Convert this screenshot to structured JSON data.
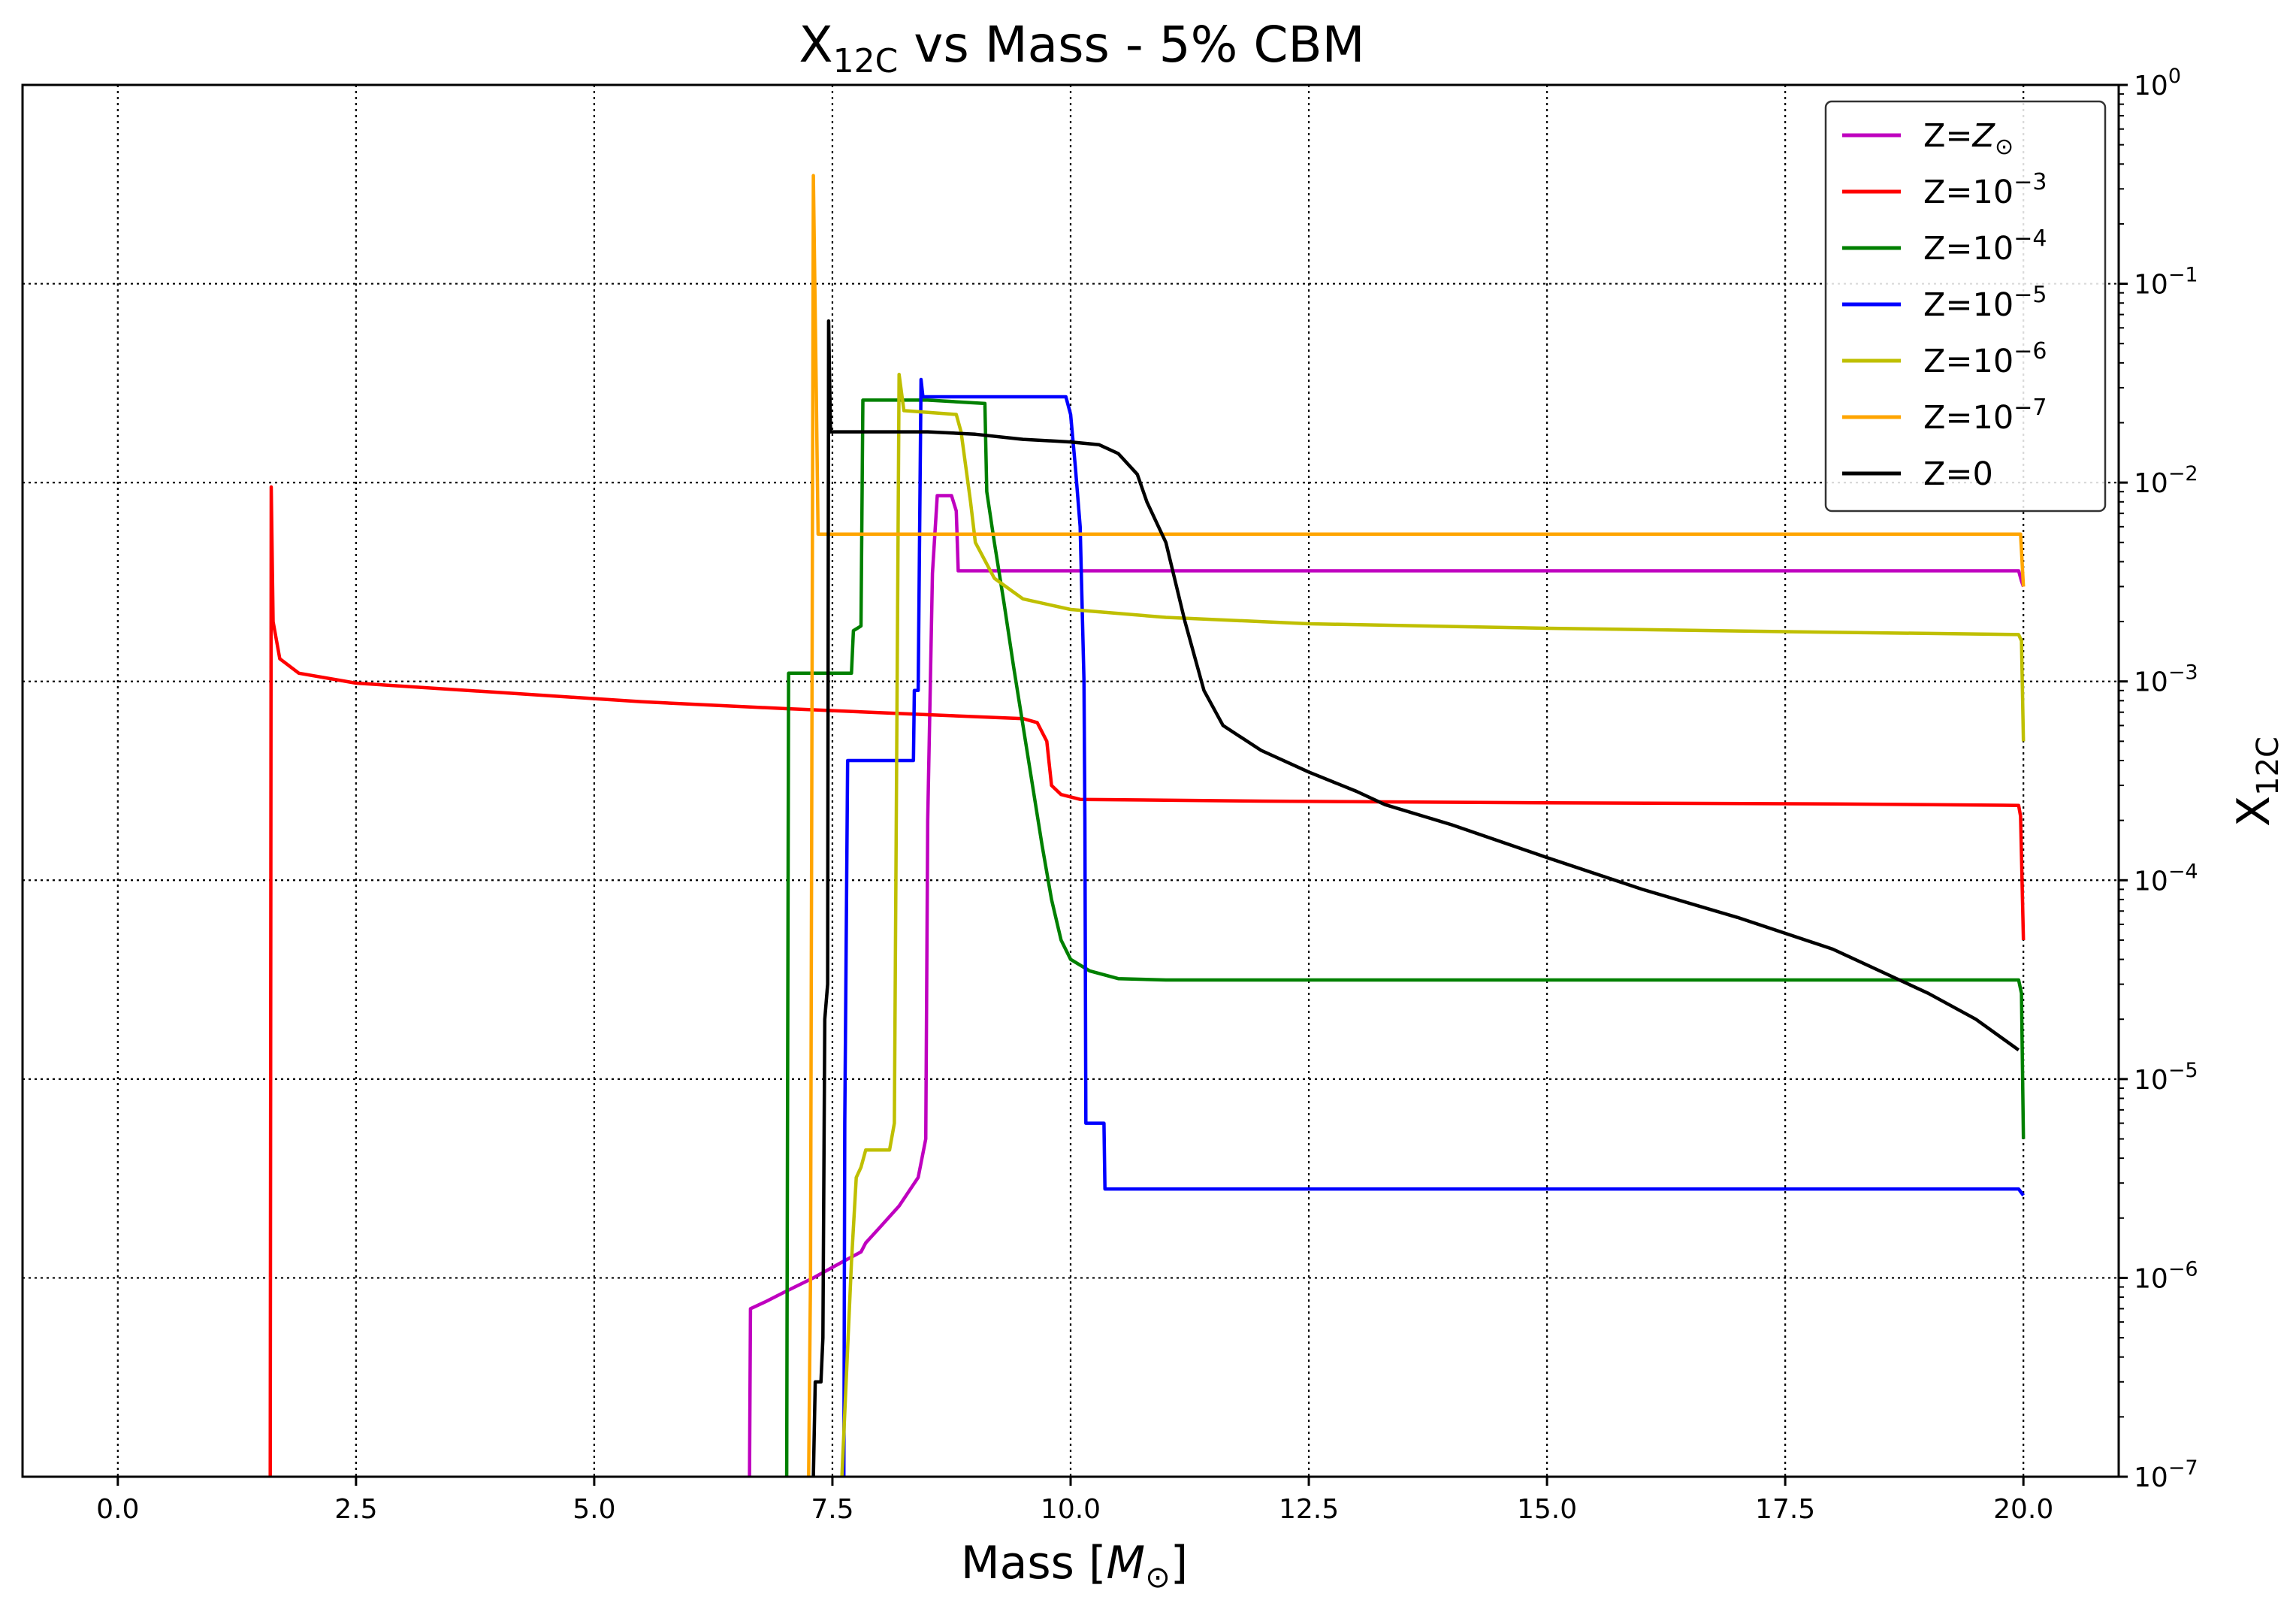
{
  "chart_data": {
    "type": "line",
    "title": {
      "main": "X",
      "sub": "12C",
      "rest": " vs Mass - 5% CBM"
    },
    "xlabel": {
      "main": "Mass [",
      "italic": "M",
      "sub": "⊙",
      "end": "]"
    },
    "ylabel": {
      "main": "X",
      "sub": "12C"
    },
    "xlim": [
      -1.0,
      21.0
    ],
    "ylim": [
      1e-07,
      1
    ],
    "yscale": "log",
    "y_axis_side": "right",
    "grid": true,
    "legend_position": "top-right",
    "x_ticks": [
      {
        "value": 0.0,
        "label": "0.0"
      },
      {
        "value": 2.5,
        "label": "2.5"
      },
      {
        "value": 5.0,
        "label": "5.0"
      },
      {
        "value": 7.5,
        "label": "7.5"
      },
      {
        "value": 10.0,
        "label": "10.0"
      },
      {
        "value": 12.5,
        "label": "12.5"
      },
      {
        "value": 15.0,
        "label": "15.0"
      },
      {
        "value": 17.5,
        "label": "17.5"
      },
      {
        "value": 20.0,
        "label": "20.0"
      }
    ],
    "y_ticks": [
      {
        "value": 1e-07,
        "base": "10",
        "exp": "−7"
      },
      {
        "value": 1e-06,
        "base": "10",
        "exp": "−6"
      },
      {
        "value": 1e-05,
        "base": "10",
        "exp": "−5"
      },
      {
        "value": 0.0001,
        "base": "10",
        "exp": "−4"
      },
      {
        "value": 0.001,
        "base": "10",
        "exp": "−3"
      },
      {
        "value": 0.01,
        "base": "10",
        "exp": "−2"
      },
      {
        "value": 0.1,
        "base": "10",
        "exp": "−1"
      },
      {
        "value": 1,
        "base": "10",
        "exp": "0"
      }
    ],
    "series": [
      {
        "name": "Z=Z⊙",
        "label_main": "Z=",
        "label_italic": "Z",
        "label_sub": "⊙",
        "label_sup": "",
        "color": "#bf00bf",
        "points": [
          [
            6.63,
            1e-07
          ],
          [
            6.64,
            7e-07
          ],
          [
            6.8,
            7.6e-07
          ],
          [
            7.0,
            8.5e-07
          ],
          [
            7.3,
            1e-06
          ],
          [
            7.6,
            1.2e-06
          ],
          [
            7.8,
            1.35e-06
          ],
          [
            7.85,
            1.5e-06
          ],
          [
            8.0,
            1.8e-06
          ],
          [
            8.2,
            2.3e-06
          ],
          [
            8.4,
            3.2e-06
          ],
          [
            8.48,
            5e-06
          ],
          [
            8.5,
            0.0002
          ],
          [
            8.55,
            0.0035
          ],
          [
            8.6,
            0.0086
          ],
          [
            8.75,
            0.0086
          ],
          [
            8.8,
            0.0072
          ],
          [
            8.82,
            0.0036
          ],
          [
            9.5,
            0.0036
          ],
          [
            12.0,
            0.0036
          ],
          [
            15.0,
            0.0036
          ],
          [
            18.0,
            0.0036
          ],
          [
            19.95,
            0.0036
          ],
          [
            19.98,
            0.0032
          ],
          [
            20.0,
            0.003
          ]
        ]
      },
      {
        "name": "Z=10^-3",
        "label_main": "Z=10",
        "label_italic": "",
        "label_sub": "",
        "label_sup": "−3",
        "color": "#ff0000",
        "points": [
          [
            1.6,
            1e-07
          ],
          [
            1.61,
            0.0095
          ],
          [
            1.63,
            0.002
          ],
          [
            1.7,
            0.0013
          ],
          [
            1.9,
            0.0011
          ],
          [
            2.5,
            0.00098
          ],
          [
            4.0,
            0.00088
          ],
          [
            5.5,
            0.00079
          ],
          [
            7.0,
            0.00073
          ],
          [
            8.5,
            0.00068
          ],
          [
            9.5,
            0.00065
          ],
          [
            9.65,
            0.00062
          ],
          [
            9.75,
            0.0005
          ],
          [
            9.8,
            0.0003
          ],
          [
            9.9,
            0.00027
          ],
          [
            10.1,
            0.000255
          ],
          [
            12.0,
            0.00025
          ],
          [
            15.0,
            0.000245
          ],
          [
            18.0,
            0.000242
          ],
          [
            19.95,
            0.000238
          ],
          [
            19.97,
            0.00021
          ],
          [
            20.0,
            5e-05
          ]
        ]
      },
      {
        "name": "Z=10^-4",
        "label_main": "Z=10",
        "label_italic": "",
        "label_sub": "",
        "label_sup": "−4",
        "color": "#008000",
        "points": [
          [
            7.02,
            1e-07
          ],
          [
            7.04,
            0.0011
          ],
          [
            7.7,
            0.0011
          ],
          [
            7.72,
            0.0018
          ],
          [
            7.8,
            0.0019
          ],
          [
            7.82,
            0.026
          ],
          [
            8.5,
            0.026
          ],
          [
            9.1,
            0.025
          ],
          [
            9.12,
            0.009
          ],
          [
            9.2,
            0.005
          ],
          [
            9.3,
            0.0025
          ],
          [
            9.4,
            0.0012
          ],
          [
            9.5,
            0.0006
          ],
          [
            9.6,
            0.0003
          ],
          [
            9.7,
            0.00015
          ],
          [
            9.8,
            8e-05
          ],
          [
            9.9,
            5e-05
          ],
          [
            10.0,
            4e-05
          ],
          [
            10.2,
            3.5e-05
          ],
          [
            10.5,
            3.2e-05
          ],
          [
            11.0,
            3.15e-05
          ],
          [
            15.0,
            3.15e-05
          ],
          [
            19.95,
            3.15e-05
          ],
          [
            19.98,
            2.7e-05
          ],
          [
            20.0,
            5e-06
          ]
        ]
      },
      {
        "name": "Z=10^-5",
        "label_main": "Z=10",
        "label_italic": "",
        "label_sub": "",
        "label_sup": "−5",
        "color": "#0000ff",
        "points": [
          [
            7.62,
            1e-07
          ],
          [
            7.63,
            6e-06
          ],
          [
            7.66,
            0.0004
          ],
          [
            8.35,
            0.0004
          ],
          [
            8.36,
            0.0009
          ],
          [
            8.4,
            0.0009
          ],
          [
            8.43,
            0.033
          ],
          [
            8.45,
            0.027
          ],
          [
            9.95,
            0.027
          ],
          [
            10.0,
            0.022
          ],
          [
            10.05,
            0.012
          ],
          [
            10.1,
            0.006
          ],
          [
            10.14,
            0.001
          ],
          [
            10.15,
            0.0002
          ],
          [
            10.16,
            6e-06
          ],
          [
            10.35,
            6e-06
          ],
          [
            10.36,
            2.8e-06
          ],
          [
            11.0,
            2.8e-06
          ],
          [
            15.0,
            2.8e-06
          ],
          [
            19.95,
            2.8e-06
          ],
          [
            20.0,
            2.6e-06
          ]
        ]
      },
      {
        "name": "Z=10^-6",
        "label_main": "Z=10",
        "label_italic": "",
        "label_sub": "",
        "label_sup": "−6",
        "color": "#bfbf00",
        "points": [
          [
            7.6,
            1e-07
          ],
          [
            7.7,
            1.2e-06
          ],
          [
            7.75,
            3.2e-06
          ],
          [
            7.8,
            3.6e-06
          ],
          [
            7.85,
            4.4e-06
          ],
          [
            8.1,
            4.4e-06
          ],
          [
            8.15,
            6e-06
          ],
          [
            8.2,
            0.035
          ],
          [
            8.25,
            0.023
          ],
          [
            8.8,
            0.022
          ],
          [
            8.85,
            0.018
          ],
          [
            8.95,
            0.008
          ],
          [
            9.0,
            0.005
          ],
          [
            9.2,
            0.0033
          ],
          [
            9.5,
            0.0026
          ],
          [
            10.0,
            0.0023
          ],
          [
            11.0,
            0.0021
          ],
          [
            12.5,
            0.00195
          ],
          [
            15.0,
            0.00185
          ],
          [
            17.5,
            0.00178
          ],
          [
            19.95,
            0.00172
          ],
          [
            19.98,
            0.0016
          ],
          [
            20.0,
            0.0005
          ]
        ]
      },
      {
        "name": "Z=10^-7",
        "label_main": "Z=10",
        "label_italic": "",
        "label_sub": "",
        "label_sup": "−7",
        "color": "#ffa500",
        "points": [
          [
            7.25,
            1e-07
          ],
          [
            7.27,
            1e-06
          ],
          [
            7.3,
            0.35
          ],
          [
            7.33,
            0.03
          ],
          [
            7.35,
            0.0055
          ],
          [
            8.0,
            0.0055
          ],
          [
            10.0,
            0.0055
          ],
          [
            15.0,
            0.0055
          ],
          [
            19.97,
            0.0055
          ],
          [
            20.0,
            0.003
          ]
        ]
      },
      {
        "name": "Z=0",
        "label_main": "Z=0",
        "label_italic": "",
        "label_sub": "",
        "label_sup": "",
        "color": "#000000",
        "points": [
          [
            7.3,
            1e-07
          ],
          [
            7.32,
            3e-07
          ],
          [
            7.38,
            3e-07
          ],
          [
            7.4,
            5e-07
          ],
          [
            7.42,
            2e-05
          ],
          [
            7.45,
            3e-05
          ],
          [
            7.46,
            0.065
          ],
          [
            7.48,
            0.018
          ],
          [
            8.0,
            0.018
          ],
          [
            8.5,
            0.018
          ],
          [
            9.0,
            0.0175
          ],
          [
            9.5,
            0.0165
          ],
          [
            10.0,
            0.016
          ],
          [
            10.3,
            0.0155
          ],
          [
            10.5,
            0.014
          ],
          [
            10.7,
            0.011
          ],
          [
            10.8,
            0.008
          ],
          [
            11.0,
            0.005
          ],
          [
            11.2,
            0.002
          ],
          [
            11.4,
            0.0009
          ],
          [
            11.6,
            0.0006
          ],
          [
            12.0,
            0.00045
          ],
          [
            12.5,
            0.00035
          ],
          [
            13.0,
            0.00028
          ],
          [
            13.3,
            0.00024
          ],
          [
            14.0,
            0.00019
          ],
          [
            15.0,
            0.00013
          ],
          [
            16.0,
            9e-05
          ],
          [
            17.0,
            6.5e-05
          ],
          [
            18.0,
            4.5e-05
          ],
          [
            19.0,
            2.7e-05
          ],
          [
            19.5,
            2e-05
          ],
          [
            19.95,
            1.4e-05
          ]
        ]
      }
    ]
  }
}
